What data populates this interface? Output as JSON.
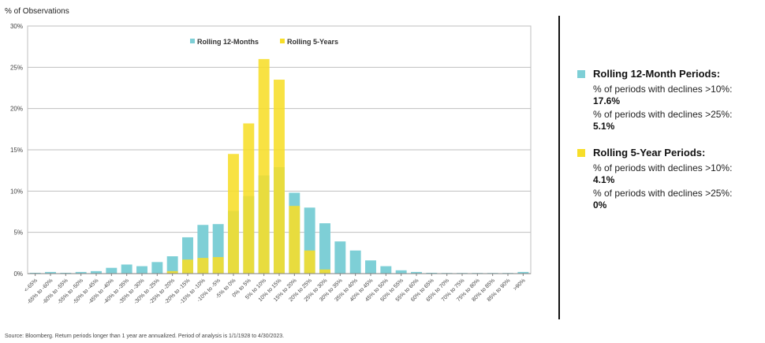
{
  "colors": {
    "rolling12": "#7ECFD6",
    "rolling5y": "#F7DE29",
    "grid": "#BFBFBF",
    "axis": "#7F7F7F"
  },
  "chart_data": {
    "type": "bar",
    "ylabel": "% of Observations",
    "ylim": [
      0,
      30
    ],
    "yticks": [
      "0%",
      "5%",
      "10%",
      "15%",
      "20%",
      "25%",
      "30%"
    ],
    "grid": true,
    "legend_position": "top-center",
    "categories": [
      "<-65%",
      "-65% to -60%",
      "-60% to -55%",
      "-55% to -50%",
      "-50% to -45%",
      "-45% to -40%",
      "-40% to -35%",
      "-35% to -30%",
      "-30% to -25%",
      "-25% to -20%",
      "-20% to -15%",
      "-15% to -10%",
      "-10% to -5%",
      "-5% to 0%",
      "0% to 5%",
      "5% to 10%",
      "10% to 15%",
      "15% to 20%",
      "20% to 25%",
      "25% to 30%",
      "30% to 35%",
      "35% to 40%",
      "40% to 45%",
      "45% to 50%",
      "50% to 55%",
      "55% to 60%",
      "60% to 65%",
      "65% to 70%",
      "70% to 75%",
      "75% to 80%",
      "80% to 85%",
      "85% to 90%",
      ">90%"
    ],
    "series": [
      {
        "name": "Rolling 12-Months",
        "values": [
          0.1,
          0.2,
          0.1,
          0.2,
          0.3,
          0.7,
          1.1,
          0.9,
          1.4,
          2.1,
          4.4,
          5.9,
          6.0,
          7.6,
          9.4,
          11.9,
          12.9,
          9.8,
          8.0,
          6.1,
          3.9,
          2.8,
          1.6,
          0.9,
          0.4,
          0.2,
          0.1,
          0.05,
          0.05,
          0.05,
          0.05,
          0.05,
          0.2
        ]
      },
      {
        "name": "Rolling 5-Years",
        "values": [
          0,
          0,
          0,
          0,
          0,
          0,
          0,
          0,
          0,
          0.3,
          1.7,
          1.9,
          2.0,
          14.5,
          18.2,
          26.0,
          23.5,
          8.2,
          2.8,
          0.5,
          0,
          0,
          0,
          0,
          0,
          0,
          0,
          0,
          0,
          0,
          0,
          0,
          0
        ]
      }
    ]
  },
  "panel": {
    "r12": {
      "title": "Rolling 12-Month Periods:",
      "s1_label": "% of periods with declines >10%:",
      "s1_value": "17.6%",
      "s2_label": "% of periods with declines >25%:",
      "s2_value": "5.1%"
    },
    "r5": {
      "title": "Rolling 5-Year Periods:",
      "s1_label": "% of periods with declines >10%:",
      "s1_value": "4.1%",
      "s2_label": "% of periods with declines >25%:",
      "s2_value": "0%"
    }
  },
  "source": "Source: Bloomberg. Return periods longer than 1 year are annualized. Period of analysis is 1/1/1928 to 4/30/2023."
}
